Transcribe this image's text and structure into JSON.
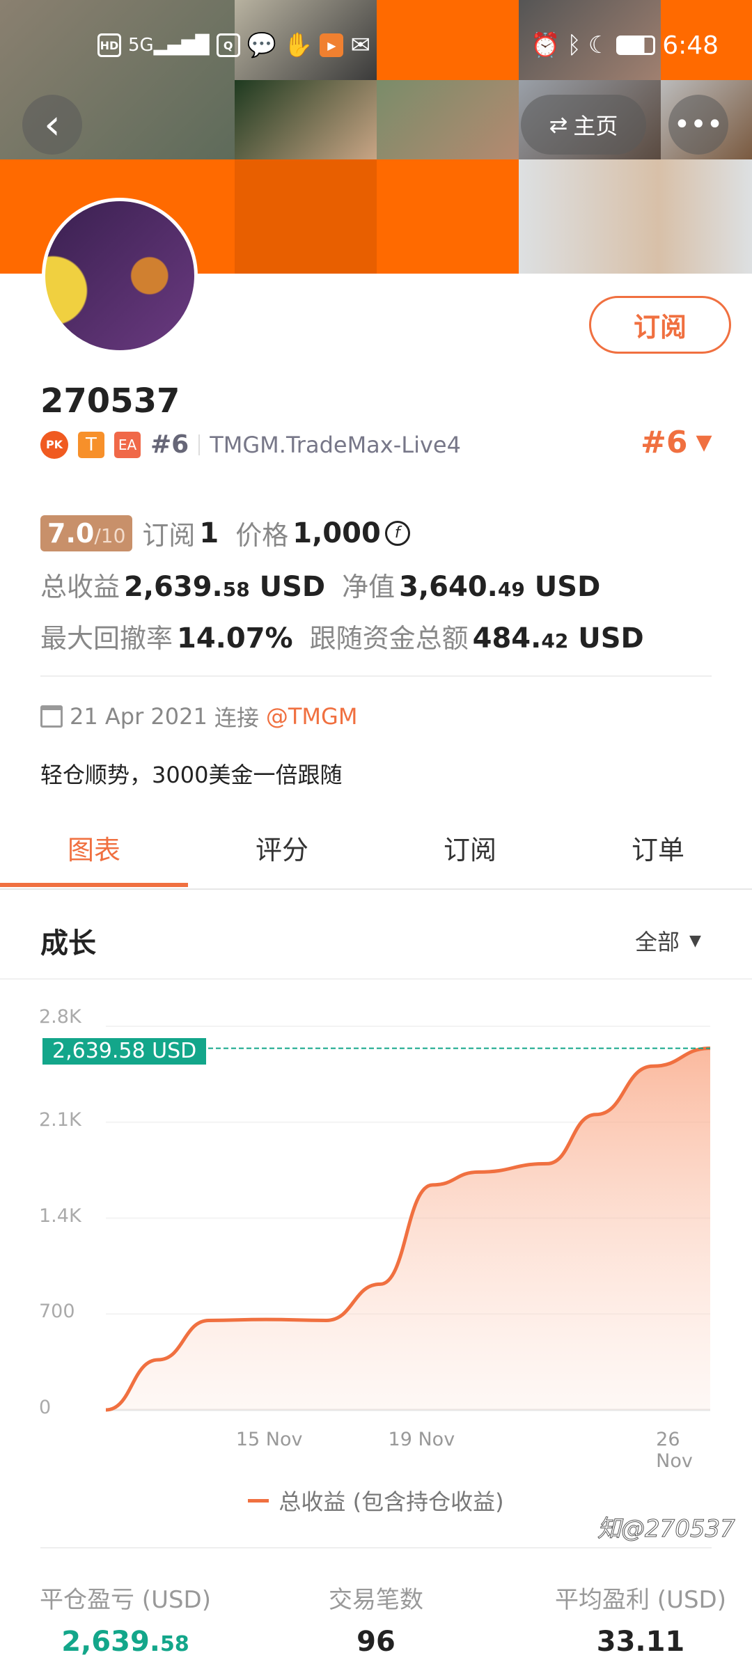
{
  "status_bar": {
    "time": "6:48",
    "left_icons": [
      "hd-icon",
      "5g-signal-icon",
      "app-icon",
      "chat-icon",
      "hand-icon",
      "video-icon",
      "mail-icon"
    ],
    "right_icons": [
      "alarm-icon",
      "bluetooth-icon",
      "moon-icon",
      "battery-icon"
    ]
  },
  "header": {
    "home_label": "主页",
    "subscribe_label": "订阅"
  },
  "profile": {
    "name": "270537",
    "badges": [
      "PK",
      "T",
      "EA"
    ],
    "rank": "#6",
    "server": "TMGM.TradeMax-Live4",
    "rank_right": "#6",
    "score": "7.0",
    "score_max": "/10",
    "subscribe_label": "订阅",
    "subscribe_count": "1",
    "price_label": "价格",
    "price_value": "1,000",
    "total_profit_label": "总收益",
    "total_profit_int": "2,639.",
    "total_profit_dec": "58",
    "total_profit_unit": "USD",
    "equity_label": "净值",
    "equity_int": "3,640.",
    "equity_dec": "49",
    "equity_unit": "USD",
    "drawdown_label": "最大回撤率",
    "drawdown_value": "14.07%",
    "follow_label": "跟随资金总额",
    "follow_int": "484.",
    "follow_dec": "42",
    "follow_unit": "USD",
    "date": "21 Apr 2021",
    "connect_label": "连接",
    "broker": "@TMGM",
    "description": "轻仓顺势，3000美金一倍跟随"
  },
  "tabs": [
    {
      "label": "图表",
      "active": true
    },
    {
      "label": "评分"
    },
    {
      "label": "订阅"
    },
    {
      "label": "订单"
    }
  ],
  "section": {
    "title": "成长",
    "filter": "全部"
  },
  "colors": {
    "accent": "#f07040",
    "teal": "#13a68a",
    "orange_bg": "#ff6a00"
  },
  "chart_data": {
    "type": "area",
    "ylim": [
      0,
      2800
    ],
    "yticks": [
      "0",
      "700",
      "1.4K",
      "2.1K",
      "2.8K"
    ],
    "ytick_values": [
      0,
      700,
      1400,
      2100,
      2800
    ],
    "xticks": [
      {
        "label": "15 Nov",
        "date": "2021-11-15"
      },
      {
        "label": "19 Nov",
        "date": "2021-11-19"
      },
      {
        "label": "26 Nov",
        "date": "2021-11-26"
      }
    ],
    "xlim": [
      "2021-11-10T17:00",
      "2021-11-26T14:00"
    ],
    "points": [
      [
        "2021-11-10T17:00",
        0
      ],
      [
        "2021-11-12T02:00",
        366
      ],
      [
        "2021-11-13T10:00",
        653
      ],
      [
        "2021-11-14T22:00",
        660
      ],
      [
        "2021-11-16T12:00",
        653
      ],
      [
        "2021-11-17T22:00",
        918
      ],
      [
        "2021-11-19T07:00",
        1642
      ],
      [
        "2021-11-20T12:00",
        1736
      ],
      [
        "2021-11-22T07:00",
        1797
      ],
      [
        "2021-11-23T14:00",
        2156
      ],
      [
        "2021-11-25T02:00",
        2509
      ],
      [
        "2021-11-26T14:00",
        2639.58
      ]
    ],
    "current_label": "2,639.58 USD",
    "legend": "总收益 (包含持仓收益)",
    "grid": true
  },
  "summary": [
    {
      "label": "平仓盈亏 (USD)",
      "int": "2,639.",
      "dec": "58",
      "color": "#13a68a"
    },
    {
      "label": "交易笔数",
      "int": "96",
      "dec": "",
      "color": "#222"
    },
    {
      "label": "平均盈利 (USD)",
      "int": "33.11",
      "dec": "",
      "color": "#222"
    }
  ],
  "watermark": "@270537"
}
